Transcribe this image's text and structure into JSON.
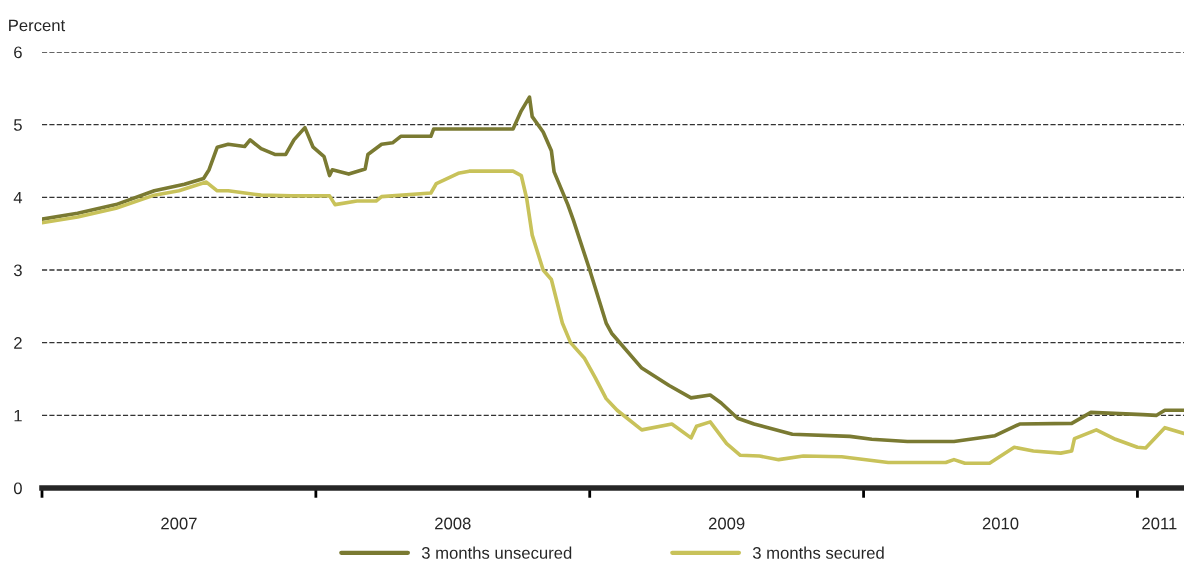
{
  "chart_data": {
    "type": "line",
    "ylabel": "Percent",
    "xlim": [
      2007,
      2011.17
    ],
    "ylim": [
      0,
      6
    ],
    "yticks": [
      0,
      1,
      2,
      3,
      4,
      5,
      6
    ],
    "xticks": [
      {
        "value": 2007,
        "label": null
      },
      {
        "value": 2008,
        "label": null
      },
      {
        "value": 2009,
        "label": null
      },
      {
        "value": 2010,
        "label": null
      },
      {
        "value": 2011,
        "label": null
      },
      {
        "value": 2007.5,
        "label": "2007"
      },
      {
        "value": 2008.5,
        "label": "2008"
      },
      {
        "value": 2009.5,
        "label": "2009"
      },
      {
        "value": 2010.5,
        "label": "2010"
      },
      {
        "value": 2011.08,
        "label": "2011"
      }
    ],
    "grid": "y",
    "legend": "bottom",
    "marker": "none",
    "line_style": "solid",
    "series": [
      {
        "name": "3 months unsecured",
        "color": "#7a7a32",
        "x": [
          2007.0,
          2007.13,
          2007.27,
          2007.41,
          2007.52,
          2007.59,
          2007.61,
          2007.64,
          2007.68,
          2007.74,
          2007.76,
          2007.8,
          2007.85,
          2007.89,
          2007.92,
          2007.96,
          2007.99,
          2008.03,
          2008.05,
          2008.06,
          2008.12,
          2008.18,
          2008.19,
          2008.24,
          2008.28,
          2008.31,
          2008.42,
          2008.43,
          2008.72,
          2008.75,
          2008.78,
          2008.79,
          2008.83,
          2008.86,
          2008.87,
          2008.92,
          2008.94,
          2009.0,
          2009.06,
          2009.08,
          2009.19,
          2009.29,
          2009.37,
          2009.44,
          2009.48,
          2009.54,
          2009.6,
          2009.74,
          2009.95,
          2010.03,
          2010.16,
          2010.33,
          2010.48,
          2010.57,
          2010.76,
          2010.83,
          2011.02,
          2011.07,
          2011.1,
          2011.17
        ],
        "values": [
          3.7,
          3.78,
          3.9,
          4.09,
          4.18,
          4.26,
          4.38,
          4.69,
          4.73,
          4.7,
          4.79,
          4.67,
          4.59,
          4.59,
          4.79,
          4.96,
          4.69,
          4.56,
          4.3,
          4.38,
          4.32,
          4.39,
          4.59,
          4.73,
          4.75,
          4.84,
          4.84,
          4.94,
          4.94,
          5.19,
          5.38,
          5.11,
          4.9,
          4.64,
          4.35,
          3.9,
          3.69,
          3.0,
          2.27,
          2.13,
          1.65,
          1.41,
          1.24,
          1.28,
          1.17,
          0.96,
          0.88,
          0.74,
          0.71,
          0.67,
          0.64,
          0.64,
          0.72,
          0.88,
          0.89,
          1.04,
          1.01,
          1.0,
          1.07,
          1.07
        ]
      },
      {
        "name": "3 months secured",
        "color": "#c8c25a",
        "x": [
          2007.0,
          2007.13,
          2007.27,
          2007.41,
          2007.5,
          2007.6,
          2007.64,
          2007.68,
          2007.8,
          2007.91,
          2008.05,
          2008.07,
          2008.15,
          2008.22,
          2008.24,
          2008.42,
          2008.44,
          2008.52,
          2008.56,
          2008.72,
          2008.75,
          2008.77,
          2008.79,
          2008.83,
          2008.86,
          2008.9,
          2008.93,
          2008.98,
          2009.02,
          2009.06,
          2009.1,
          2009.19,
          2009.3,
          2009.37,
          2009.39,
          2009.44,
          2009.5,
          2009.55,
          2009.62,
          2009.69,
          2009.78,
          2009.92,
          2010.09,
          2010.3,
          2010.33,
          2010.37,
          2010.46,
          2010.55,
          2010.62,
          2010.72,
          2010.76,
          2010.77,
          2010.85,
          2010.92,
          2011.0,
          2011.03,
          2011.1,
          2011.17
        ],
        "values": [
          3.65,
          3.73,
          3.85,
          4.03,
          4.09,
          4.21,
          4.09,
          4.09,
          4.03,
          4.02,
          4.02,
          3.9,
          3.95,
          3.95,
          4.01,
          4.06,
          4.19,
          4.33,
          4.36,
          4.36,
          4.3,
          3.98,
          3.48,
          3.0,
          2.87,
          2.27,
          2.0,
          1.79,
          1.52,
          1.23,
          1.07,
          0.8,
          0.88,
          0.69,
          0.85,
          0.91,
          0.61,
          0.45,
          0.44,
          0.39,
          0.44,
          0.43,
          0.35,
          0.35,
          0.39,
          0.34,
          0.34,
          0.56,
          0.51,
          0.48,
          0.51,
          0.68,
          0.8,
          0.67,
          0.56,
          0.55,
          0.83,
          0.75
        ]
      }
    ]
  }
}
